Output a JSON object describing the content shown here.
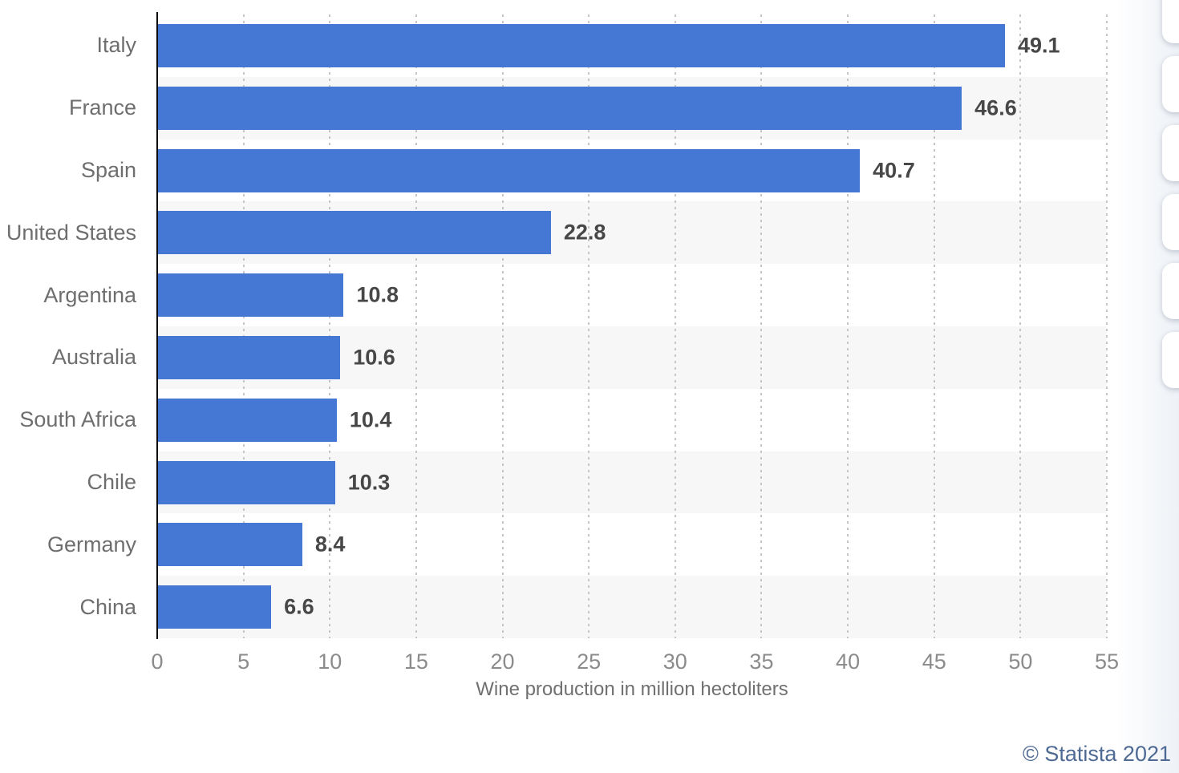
{
  "chart_data": {
    "type": "bar",
    "orientation": "horizontal",
    "categories": [
      "Italy",
      "France",
      "Spain",
      "United States",
      "Argentina",
      "Australia",
      "South Africa",
      "Chile",
      "Germany",
      "China"
    ],
    "values": [
      49.1,
      46.6,
      40.7,
      22.8,
      10.8,
      10.6,
      10.4,
      10.3,
      8.4,
      6.6
    ],
    "value_labels": [
      "49.1",
      "46.6",
      "40.7",
      "22.8",
      "10.8",
      "10.6",
      "10.4",
      "10.3",
      "8.4",
      "6.6"
    ],
    "title": "",
    "xlabel": "Wine production in million hectoliters",
    "ylabel": "",
    "xlim": [
      0,
      55
    ],
    "xticks": [
      0,
      5,
      10,
      15,
      20,
      25,
      30,
      35,
      40,
      45,
      50,
      55
    ],
    "grid": "vertical-dotted",
    "legend": "none",
    "colors": {
      "bar": "#4577d4",
      "row_stripe": "#f7f7f7",
      "gridline": "#c6c6c6",
      "axis_line": "#0b0b0b",
      "category_label": "#6e6e6e",
      "value_label": "#474747",
      "tick_label": "#8b8b8b",
      "axis_title": "#707070"
    }
  },
  "footer": {
    "copyright": "© Statista 2021",
    "copyright_color": "#4e6a94"
  },
  "side_toolbar": {
    "button_count": 6
  }
}
